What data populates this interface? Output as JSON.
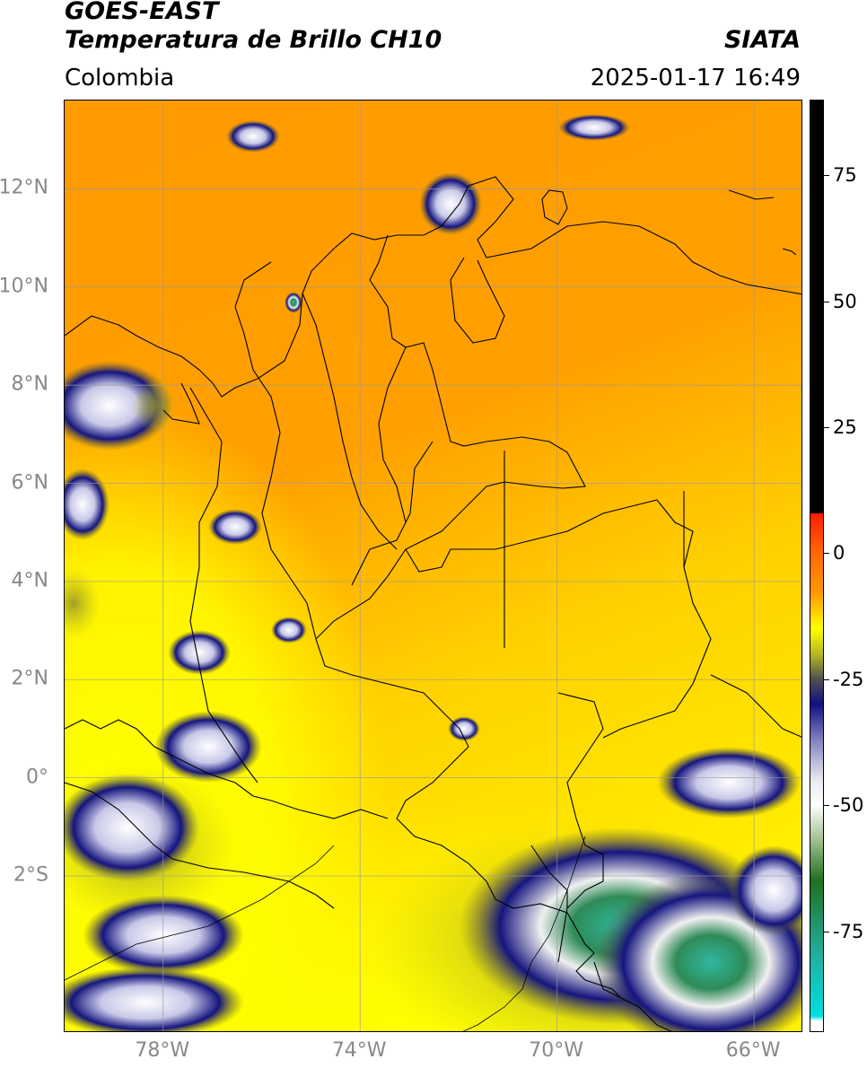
{
  "header": {
    "satellite": "GOES-EAST",
    "product": "Temperatura de Brillo CH10",
    "agency": "SIATA",
    "region": "Colombia",
    "datetime": "2025-01-17 16:49"
  },
  "map": {
    "lat_labels": [
      {
        "value": 12,
        "label": "12°N"
      },
      {
        "value": 10,
        "label": "10°N"
      },
      {
        "value": 8,
        "label": "8°N"
      },
      {
        "value": 6,
        "label": "6°N"
      },
      {
        "value": 4,
        "label": "4°N"
      },
      {
        "value": 2,
        "label": "2°N"
      },
      {
        "value": 0,
        "label": "0°"
      },
      {
        "value": -2,
        "label": "2°S"
      }
    ],
    "lon_labels": [
      {
        "value": -78,
        "label": "78°W"
      },
      {
        "value": -74,
        "label": "74°W"
      },
      {
        "value": -70,
        "label": "70°W"
      },
      {
        "value": -66,
        "label": "66°W"
      }
    ],
    "lat_range": [
      -5.2,
      13.8
    ],
    "lon_range": [
      -80,
      -65
    ]
  },
  "colorbar": {
    "range": [
      -95,
      90
    ],
    "ticks": [
      {
        "value": 75,
        "label": "75"
      },
      {
        "value": 50,
        "label": "50"
      },
      {
        "value": 25,
        "label": "25"
      },
      {
        "value": 0,
        "label": "0"
      },
      {
        "value": -25,
        "label": "-25"
      },
      {
        "value": -50,
        "label": "-50"
      },
      {
        "value": -75,
        "label": "-75"
      }
    ],
    "stops": [
      {
        "value": 90,
        "color": "#000000"
      },
      {
        "value": 8,
        "color": "#000000"
      },
      {
        "value": 7.9,
        "color": "#ff1a00"
      },
      {
        "value": 0,
        "color": "#ff6a00"
      },
      {
        "value": -8,
        "color": "#ff9900"
      },
      {
        "value": -15,
        "color": "#ffff00"
      },
      {
        "value": -20,
        "color": "#b8b820"
      },
      {
        "value": -25,
        "color": "#505050"
      },
      {
        "value": -30,
        "color": "#101080"
      },
      {
        "value": -37,
        "color": "#8080c0"
      },
      {
        "value": -45,
        "color": "#e8e8f0"
      },
      {
        "value": -50,
        "color": "#ffffff"
      },
      {
        "value": -57,
        "color": "#a0c090"
      },
      {
        "value": -65,
        "color": "#207020"
      },
      {
        "value": -80,
        "color": "#20b0a0"
      },
      {
        "value": -92,
        "color": "#00e0e0"
      },
      {
        "value": -93,
        "color": "#ffffff"
      },
      {
        "value": -95,
        "color": "#ffffff"
      }
    ]
  },
  "colors": {
    "warm_orange": "#ff9800",
    "mid_yellow": "#ffff00",
    "cloud_navy": "#15157e",
    "cloud_green": "#2e8b57"
  }
}
